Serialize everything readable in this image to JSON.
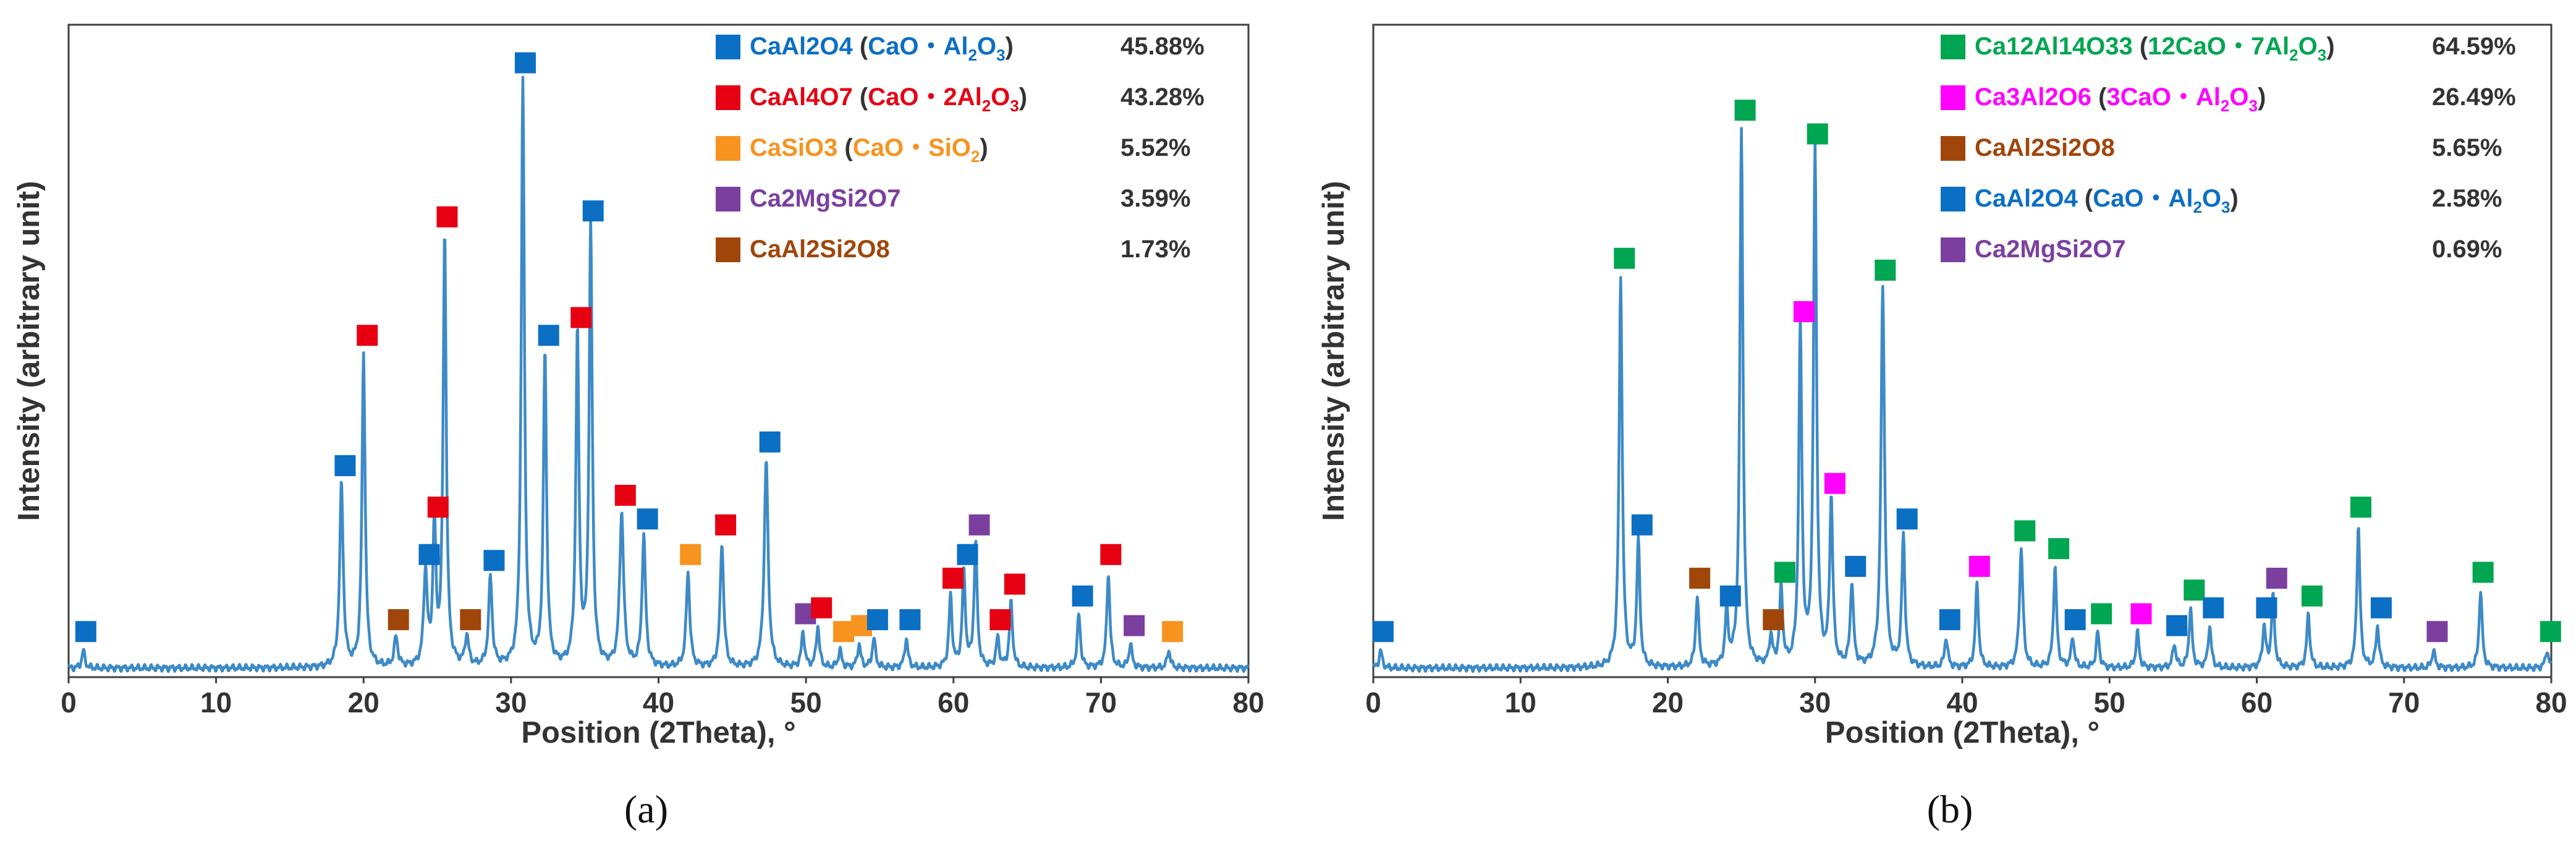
{
  "colors": {
    "trace": "#3d8ac7",
    "CaAl2O4": "#0b6fc4",
    "CaAl4O7": "#e60012",
    "CaSiO3": "#f7931e",
    "Ca2MgSi2O7": "#7b3fa0",
    "CaAl2Si2O8": "#a0460b",
    "Ca12Al14O33": "#00a651",
    "Ca3Al2O6": "#ff00ff"
  },
  "chart_data": [
    {
      "type": "line",
      "panel_label": "(a)",
      "ylabel": "Intensity (arbitrary unit)",
      "xlabel": "Position (2Theta), °",
      "xlim": [
        0,
        80
      ],
      "ylim": [
        0,
        100
      ],
      "xticks": [
        "0",
        "10",
        "20",
        "30",
        "40",
        "50",
        "60",
        "70",
        "80"
      ],
      "grid": false,
      "legend_position": "top-right",
      "legend": [
        {
          "phase": "CaAl2O4",
          "open": " (",
          "formula": "CaO・Al",
          "sub1": "2",
          "mid": "O",
          "sub2": "3",
          "tail": "",
          "close": ")",
          "percent": "45.88%"
        },
        {
          "phase": "CaAl4O7",
          "open": " (",
          "formula": "CaO・2Al",
          "sub1": "2",
          "mid": "O",
          "sub2": "3",
          "tail": "",
          "close": ")",
          "percent": "43.28%"
        },
        {
          "phase": "CaSiO3",
          "open": " (",
          "formula": "CaO・SiO",
          "sub1": "2",
          "mid": "",
          "sub2": "",
          "tail": "",
          "close": ")",
          "percent": "5.52%"
        },
        {
          "phase": "Ca2MgSi2O7",
          "open": "",
          "formula": "",
          "sub1": "",
          "mid": "",
          "sub2": "",
          "tail": "",
          "close": "",
          "percent": "3.59%"
        },
        {
          "phase": "CaAl2Si2O8",
          "open": "",
          "formula": "",
          "sub1": "",
          "mid": "",
          "sub2": "",
          "tail": "",
          "close": "",
          "percent": "1.73%"
        }
      ],
      "peaks": [
        {
          "x": 1.0,
          "y": 3,
          "w": 0.15,
          "phase": "CaAl2O4"
        },
        {
          "x": 18.5,
          "y": 31,
          "w": 0.18,
          "phase": "CaAl2O4"
        },
        {
          "x": 20.0,
          "y": 53,
          "w": 0.16,
          "phase": "CaAl4O7"
        },
        {
          "x": 22.2,
          "y": 5,
          "w": 0.18,
          "phase": "CaAl2Si2O8"
        },
        {
          "x": 24.2,
          "y": 16,
          "w": 0.18,
          "phase": "CaAl2O4"
        },
        {
          "x": 24.8,
          "y": 24,
          "w": 0.15,
          "phase": "CaAl4O7"
        },
        {
          "x": 25.5,
          "y": 73,
          "w": 0.16,
          "phase": "CaAl4O7"
        },
        {
          "x": 27.0,
          "y": 5,
          "w": 0.18,
          "phase": "CaAl2Si2O8"
        },
        {
          "x": 28.6,
          "y": 15,
          "w": 0.18,
          "phase": "CaAl2O4"
        },
        {
          "x": 30.8,
          "y": 99,
          "w": 0.16,
          "phase": "CaAl2O4"
        },
        {
          "x": 32.3,
          "y": 53,
          "w": 0.16,
          "phase": "CaAl2O4"
        },
        {
          "x": 34.5,
          "y": 56,
          "w": 0.16,
          "phase": "CaAl4O7"
        },
        {
          "x": 35.4,
          "y": 74,
          "w": 0.16,
          "phase": "CaAl2O4"
        },
        {
          "x": 37.5,
          "y": 26,
          "w": 0.2,
          "phase": "CaAl4O7"
        },
        {
          "x": 39.0,
          "y": 22,
          "w": 0.18,
          "phase": "CaAl2O4"
        },
        {
          "x": 42.0,
          "y": 16,
          "w": 0.18,
          "phase": "CaSiO3"
        },
        {
          "x": 44.3,
          "y": 21,
          "w": 0.18,
          "phase": "CaAl4O7"
        },
        {
          "x": 47.3,
          "y": 35,
          "w": 0.2,
          "phase": "CaAl2O4"
        },
        {
          "x": 49.8,
          "y": 6,
          "w": 0.16,
          "phase": "Ca2MgSi2O7"
        },
        {
          "x": 50.8,
          "y": 7,
          "w": 0.16,
          "phase": "CaAl4O7"
        },
        {
          "x": 52.3,
          "y": 3,
          "w": 0.16,
          "phase": "CaSiO3"
        },
        {
          "x": 53.6,
          "y": 4,
          "w": 0.16,
          "phase": "CaSiO3"
        },
        {
          "x": 54.6,
          "y": 5,
          "w": 0.16,
          "phase": "CaAl2O4"
        },
        {
          "x": 56.8,
          "y": 5,
          "w": 0.16,
          "phase": "CaAl2O4"
        },
        {
          "x": 59.8,
          "y": 12,
          "w": 0.16,
          "phase": "CaAl4O7"
        },
        {
          "x": 60.7,
          "y": 16,
          "w": 0.16,
          "phase": "CaAl2O4"
        },
        {
          "x": 61.5,
          "y": 21,
          "w": 0.16,
          "phase": "Ca2MgSi2O7"
        },
        {
          "x": 63.0,
          "y": 5,
          "w": 0.16,
          "phase": "CaAl4O7"
        },
        {
          "x": 63.9,
          "y": 11,
          "w": 0.16,
          "phase": "CaAl4O7"
        },
        {
          "x": 68.5,
          "y": 9,
          "w": 0.16,
          "phase": "CaAl2O4"
        },
        {
          "x": 70.5,
          "y": 16,
          "w": 0.16,
          "phase": "CaAl4O7"
        },
        {
          "x": 72.0,
          "y": 4,
          "w": 0.16,
          "phase": "Ca2MgSi2O7"
        },
        {
          "x": 74.6,
          "y": 3,
          "w": 0.16,
          "phase": "CaSiO3"
        }
      ]
    },
    {
      "type": "line",
      "panel_label": "(b)",
      "ylabel": "Intensity (arbitrary unit)",
      "xlabel": "Position (2Theta), °",
      "xlim": [
        0,
        80
      ],
      "ylim": [
        0,
        100
      ],
      "xticks": [
        "0",
        "10",
        "20",
        "30",
        "40",
        "50",
        "60",
        "70",
        "80"
      ],
      "grid": false,
      "legend_position": "top-right",
      "legend": [
        {
          "phase": "Ca12Al14O33",
          "open": " (",
          "formula": "12CaO・7Al",
          "sub1": "2",
          "mid": "O",
          "sub2": "3",
          "tail": "",
          "close": ")",
          "percent": "64.59%"
        },
        {
          "phase": "Ca3Al2O6",
          "open": " (",
          "formula": "3CaO・Al",
          "sub1": "2",
          "mid": "O",
          "sub2": "3",
          "tail": "",
          "close": ")",
          "percent": "26.49%"
        },
        {
          "phase": "CaAl2Si2O8",
          "open": "",
          "formula": "",
          "sub1": "",
          "mid": "",
          "sub2": "",
          "tail": "",
          "close": "",
          "percent": "5.65%"
        },
        {
          "phase": "CaAl2O4",
          "open": " (",
          "formula": "CaO・Al",
          "sub1": "2",
          "mid": "O",
          "sub2": "3",
          "tail": "",
          "close": ")",
          "percent": "2.58%"
        },
        {
          "phase": "Ca2MgSi2O7",
          "open": "",
          "formula": "",
          "sub1": "",
          "mid": "",
          "sub2": "",
          "tail": "",
          "close": "",
          "percent": "0.69%"
        }
      ],
      "peaks": [
        {
          "x": 0.5,
          "y": 3,
          "w": 0.15,
          "phase": "CaAl2O4"
        },
        {
          "x": 16.8,
          "y": 66,
          "w": 0.16,
          "phase": "Ca12Al14O33"
        },
        {
          "x": 18.0,
          "y": 21,
          "w": 0.16,
          "phase": "CaAl2O4"
        },
        {
          "x": 22.0,
          "y": 12,
          "w": 0.16,
          "phase": "CaAl2Si2O8"
        },
        {
          "x": 24.0,
          "y": 9,
          "w": 0.16,
          "phase": "CaAl2O4"
        },
        {
          "x": 25.0,
          "y": 91,
          "w": 0.16,
          "phase": "Ca12Al14O33"
        },
        {
          "x": 27.0,
          "y": 5,
          "w": 0.16,
          "phase": "CaAl2Si2O8"
        },
        {
          "x": 27.7,
          "y": 13,
          "w": 0.16,
          "phase": "Ca12Al14O33"
        },
        {
          "x": 29.0,
          "y": 57,
          "w": 0.16,
          "phase": "Ca3Al2O6"
        },
        {
          "x": 30.0,
          "y": 87,
          "w": 0.16,
          "phase": "Ca12Al14O33"
        },
        {
          "x": 31.1,
          "y": 28,
          "w": 0.16,
          "phase": "Ca3Al2O6"
        },
        {
          "x": 32.5,
          "y": 14,
          "w": 0.16,
          "phase": "CaAl2O4"
        },
        {
          "x": 34.6,
          "y": 64,
          "w": 0.18,
          "phase": "Ca12Al14O33"
        },
        {
          "x": 36.0,
          "y": 22,
          "w": 0.16,
          "phase": "CaAl2O4"
        },
        {
          "x": 38.9,
          "y": 5,
          "w": 0.16,
          "phase": "CaAl2O4"
        },
        {
          "x": 41.0,
          "y": 14,
          "w": 0.16,
          "phase": "Ca3Al2O6"
        },
        {
          "x": 44.0,
          "y": 20,
          "w": 0.18,
          "phase": "Ca12Al14O33"
        },
        {
          "x": 46.3,
          "y": 17,
          "w": 0.16,
          "phase": "Ca12Al14O33"
        },
        {
          "x": 47.5,
          "y": 5,
          "w": 0.16,
          "phase": "CaAl2O4"
        },
        {
          "x": 49.2,
          "y": 6,
          "w": 0.16,
          "phase": "Ca12Al14O33"
        },
        {
          "x": 51.9,
          "y": 6,
          "w": 0.16,
          "phase": "Ca3Al2O6"
        },
        {
          "x": 54.4,
          "y": 4,
          "w": 0.16,
          "phase": "CaAl2O4"
        },
        {
          "x": 55.5,
          "y": 10,
          "w": 0.16,
          "phase": "Ca12Al14O33"
        },
        {
          "x": 56.8,
          "y": 7,
          "w": 0.16,
          "phase": "CaAl2O4"
        },
        {
          "x": 60.5,
          "y": 7,
          "w": 0.16,
          "phase": "CaAl2O4"
        },
        {
          "x": 61.1,
          "y": 12,
          "w": 0.16,
          "phase": "Ca2MgSi2O7"
        },
        {
          "x": 63.5,
          "y": 9,
          "w": 0.16,
          "phase": "Ca12Al14O33"
        },
        {
          "x": 66.9,
          "y": 24,
          "w": 0.16,
          "phase": "Ca12Al14O33"
        },
        {
          "x": 68.2,
          "y": 7,
          "w": 0.16,
          "phase": "CaAl2O4"
        },
        {
          "x": 72.0,
          "y": 3,
          "w": 0.16,
          "phase": "Ca2MgSi2O7"
        },
        {
          "x": 75.2,
          "y": 13,
          "w": 0.16,
          "phase": "Ca12Al14O33"
        },
        {
          "x": 79.7,
          "y": 3,
          "w": 0.16,
          "phase": "Ca12Al14O33"
        }
      ]
    }
  ]
}
